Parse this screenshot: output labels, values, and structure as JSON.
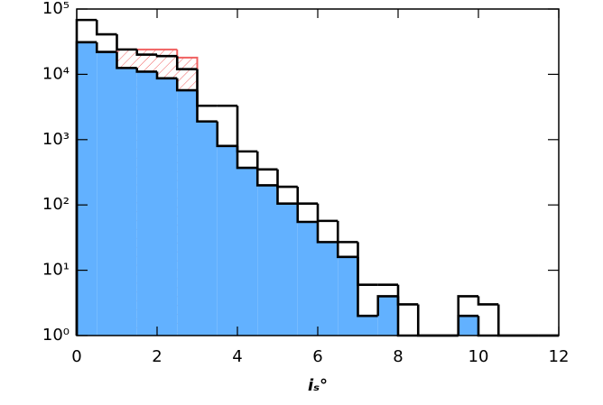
{
  "chart_data": {
    "type": "histogram",
    "xlabel": "iₛ°",
    "bins": [
      0,
      0.5,
      1,
      1.5,
      2,
      2.5,
      3,
      3.5,
      4,
      4.5,
      5,
      5.5,
      6,
      6.5,
      7,
      7.5,
      8,
      8.5,
      9,
      9.5,
      10,
      10.5,
      11,
      11.5,
      12
    ],
    "series": [
      {
        "color": "#f06060",
        "fill": "hatch",
        "values": [
          null,
          null,
          24000,
          24000,
          24000,
          18000,
          null,
          null,
          null,
          null,
          null,
          null,
          null,
          null,
          null,
          null,
          null,
          null,
          null,
          null,
          null,
          null,
          null,
          null
        ]
      },
      {
        "color": "#000000",
        "fill": "#62b1ff",
        "values": [
          31000,
          22000,
          12500,
          11000,
          8700,
          5700,
          1900,
          800,
          370,
          200,
          105,
          55,
          27,
          16,
          2,
          4,
          0,
          0,
          0,
          2,
          0,
          0,
          0,
          0
        ]
      },
      {
        "color": "#000000",
        "fill": "none",
        "values": [
          68000,
          41000,
          24000,
          20000,
          19000,
          12000,
          3300,
          3300,
          660,
          350,
          190,
          105,
          57,
          27,
          6,
          6,
          3,
          0,
          0,
          4,
          3,
          0,
          0,
          0
        ]
      }
    ],
    "log_y": true,
    "xlim": [
      0,
      12
    ],
    "xticks": [
      0,
      2,
      4,
      6,
      8,
      10,
      12
    ],
    "ylim": [
      1,
      100000
    ],
    "yticks": [
      {
        "value": 1,
        "label": "10⁰"
      },
      {
        "value": 10,
        "label": "10¹"
      },
      {
        "value": 100,
        "label": "10²"
      },
      {
        "value": 1000,
        "label": "10³"
      },
      {
        "value": 10000,
        "label": "10⁴"
      },
      {
        "value": 100000,
        "label": "10⁵"
      }
    ]
  }
}
